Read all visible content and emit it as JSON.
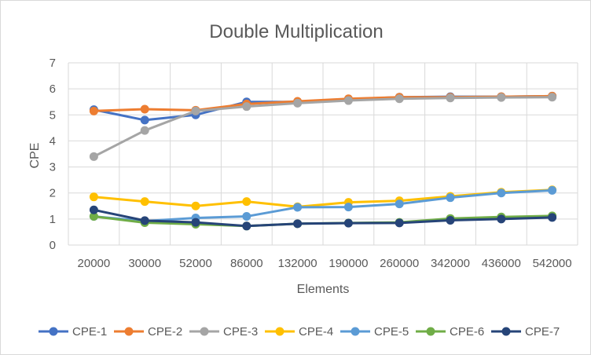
{
  "chart_data": {
    "type": "line",
    "title": "Double Multiplication",
    "xlabel": "Elements",
    "ylabel": "CPE",
    "categories": [
      "20000",
      "30000",
      "52000",
      "86000",
      "132000",
      "190000",
      "260000",
      "342000",
      "436000",
      "542000"
    ],
    "ylim": [
      0,
      7
    ],
    "yticks": [
      0,
      1,
      2,
      3,
      4,
      5,
      6,
      7
    ],
    "grid": true,
    "legend_position": "bottom",
    "series": [
      {
        "name": "CPE-1",
        "color": "#4472c4",
        "values": [
          5.2,
          4.8,
          5.0,
          5.5,
          5.5,
          5.6,
          5.68,
          5.7,
          5.7,
          5.72
        ]
      },
      {
        "name": "CPE-2",
        "color": "#ed7d31",
        "values": [
          5.15,
          5.22,
          5.18,
          5.42,
          5.52,
          5.62,
          5.68,
          5.68,
          5.7,
          5.72
        ]
      },
      {
        "name": "CPE-3",
        "color": "#a5a5a5",
        "values": [
          3.4,
          4.4,
          5.15,
          5.32,
          5.45,
          5.55,
          5.62,
          5.65,
          5.67,
          5.68
        ]
      },
      {
        "name": "CPE-4",
        "color": "#ffc000",
        "values": [
          1.85,
          1.67,
          1.5,
          1.67,
          1.47,
          1.64,
          1.7,
          1.87,
          2.03,
          2.12
        ]
      },
      {
        "name": "CPE-5",
        "color": "#5b9bd5",
        "values": [
          1.1,
          0.92,
          1.04,
          1.1,
          1.45,
          1.46,
          1.58,
          1.82,
          2.0,
          2.1
        ]
      },
      {
        "name": "CPE-6",
        "color": "#70ad47",
        "values": [
          1.1,
          0.86,
          0.8,
          0.73,
          0.82,
          0.85,
          0.87,
          1.02,
          1.08,
          1.12
        ]
      },
      {
        "name": "CPE-7",
        "color": "#264478",
        "values": [
          1.35,
          0.94,
          0.87,
          0.73,
          0.82,
          0.84,
          0.85,
          0.95,
          1.0,
          1.06
        ]
      }
    ]
  }
}
